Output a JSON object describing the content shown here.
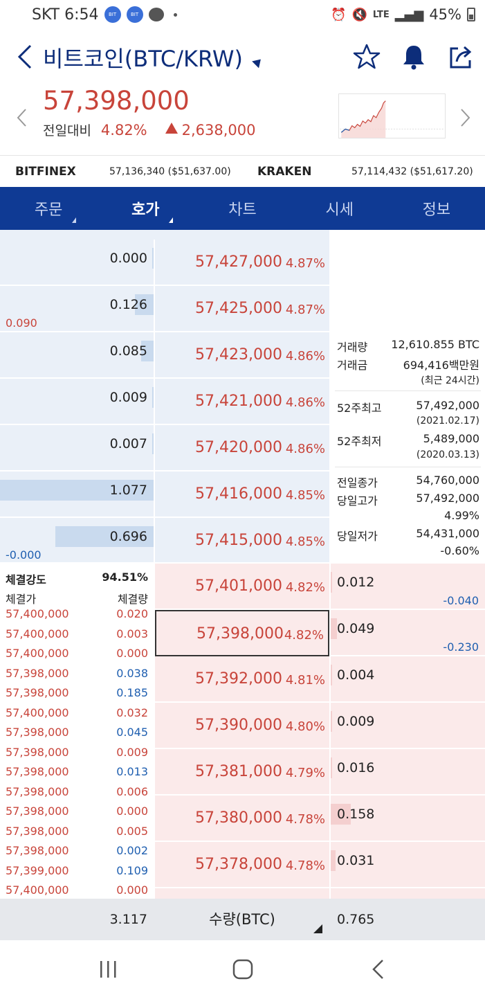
{
  "status_bar": {
    "carrier_time": "SKT 6:54",
    "badge1": "BIT",
    "badge2": "BIT",
    "network": "LTE",
    "battery": "45%"
  },
  "header": {
    "title": "비트코인(BTC/KRW)"
  },
  "quote": {
    "price": "57,398,000",
    "change_label": "전일대비",
    "change_pct": "4.82%",
    "change_amt": "2,638,000"
  },
  "exchanges": [
    {
      "name": "BITFINEX",
      "value": "57,136,340 ($51,637.00)"
    },
    {
      "name": "KRAKEN",
      "value": "57,114,432 ($51,617.20)"
    }
  ],
  "tabs": [
    {
      "label": "주문",
      "has_caret": true
    },
    {
      "label": "호가",
      "has_caret": true,
      "active": true
    },
    {
      "label": "차트"
    },
    {
      "label": "시세"
    },
    {
      "label": "정보"
    }
  ],
  "asks": [
    {
      "qty": "0.000",
      "price": "57,427,000",
      "pct": "4.87%",
      "bar": 0.0
    },
    {
      "qty": "0.126",
      "price": "57,425,000",
      "pct": "4.87%",
      "bar": 0.12,
      "delta": "0.090"
    },
    {
      "qty": "0.085",
      "price": "57,423,000",
      "pct": "4.86%",
      "bar": 0.08
    },
    {
      "qty": "0.009",
      "price": "57,421,000",
      "pct": "4.86%",
      "bar": 0.01
    },
    {
      "qty": "0.007",
      "price": "57,420,000",
      "pct": "4.86%",
      "bar": 0.01
    },
    {
      "qty": "1.077",
      "price": "57,416,000",
      "pct": "4.85%",
      "bar": 1.0
    },
    {
      "qty": "0.696",
      "price": "57,415,000",
      "pct": "4.85%",
      "bar": 0.64,
      "delta": "-0.000"
    }
  ],
  "info": {
    "volume_label": "거래량",
    "volume": "12,610.855 BTC",
    "amount_label": "거래금",
    "amount": "694,416백만원",
    "recent": "(최근 24시간)",
    "high52_label": "52주최고",
    "high52": "57,492,000",
    "high52_date": "(2021.02.17)",
    "low52_label": "52주최저",
    "low52": "5,489,000",
    "low52_date": "(2020.03.13)",
    "prev_close_label": "전일종가",
    "prev_close": "54,760,000",
    "day_high_label": "당일고가",
    "day_high": "57,492,000",
    "day_high_pct": "4.99%",
    "day_low_label": "당일저가",
    "day_low": "54,431,000",
    "day_low_pct": "-0.60%"
  },
  "trades": {
    "strength_label": "체결강도",
    "strength": "94.51%",
    "price_header": "체결가",
    "qty_header": "체결량",
    "rows": [
      {
        "price": "57,400,000",
        "qty": "0.020",
        "side": "buy"
      },
      {
        "price": "57,400,000",
        "qty": "0.003",
        "side": "buy"
      },
      {
        "price": "57,400,000",
        "qty": "0.000",
        "side": "buy"
      },
      {
        "price": "57,398,000",
        "qty": "0.038",
        "side": "sell"
      },
      {
        "price": "57,398,000",
        "qty": "0.185",
        "side": "sell"
      },
      {
        "price": "57,400,000",
        "qty": "0.032",
        "side": "buy"
      },
      {
        "price": "57,398,000",
        "qty": "0.045",
        "side": "sell"
      },
      {
        "price": "57,398,000",
        "qty": "0.009",
        "side": "buy"
      },
      {
        "price": "57,398,000",
        "qty": "0.013",
        "side": "sell"
      },
      {
        "price": "57,398,000",
        "qty": "0.006",
        "side": "buy"
      },
      {
        "price": "57,398,000",
        "qty": "0.000",
        "side": "buy"
      },
      {
        "price": "57,398,000",
        "qty": "0.005",
        "side": "buy"
      },
      {
        "price": "57,398,000",
        "qty": "0.002",
        "side": "sell"
      },
      {
        "price": "57,399,000",
        "qty": "0.109",
        "side": "sell"
      },
      {
        "price": "57,400,000",
        "qty": "0.000",
        "side": "buy"
      }
    ]
  },
  "bids": [
    {
      "qty": "0.012",
      "price": "57,401,000",
      "pct": "4.82%",
      "bar": 0.0,
      "delta": "-0.040"
    },
    {
      "qty": "0.049",
      "price": "57,398,000",
      "pct": "4.82%",
      "bar": 0.04,
      "delta": "-0.230",
      "current": true
    },
    {
      "qty": "0.004",
      "price": "57,392,000",
      "pct": "4.81%",
      "bar": 0.0
    },
    {
      "qty": "0.009",
      "price": "57,390,000",
      "pct": "4.80%",
      "bar": 0.0
    },
    {
      "qty": "0.016",
      "price": "57,381,000",
      "pct": "4.79%",
      "bar": 0.01
    },
    {
      "qty": "0.158",
      "price": "57,380,000",
      "pct": "4.78%",
      "bar": 0.13
    },
    {
      "qty": "0.031",
      "price": "57,378,000",
      "pct": "4.78%",
      "bar": 0.03
    }
  ],
  "footer": {
    "ask_total": "3.117",
    "unit_label": "수량(BTC)",
    "bid_total": "0.765"
  },
  "colors": {
    "navy": "#0f3a94",
    "up_red": "#c8443a",
    "down_blue": "#1f5fb0",
    "ask_bg": "#eaf0f8",
    "bid_bg": "#fbeaea"
  }
}
